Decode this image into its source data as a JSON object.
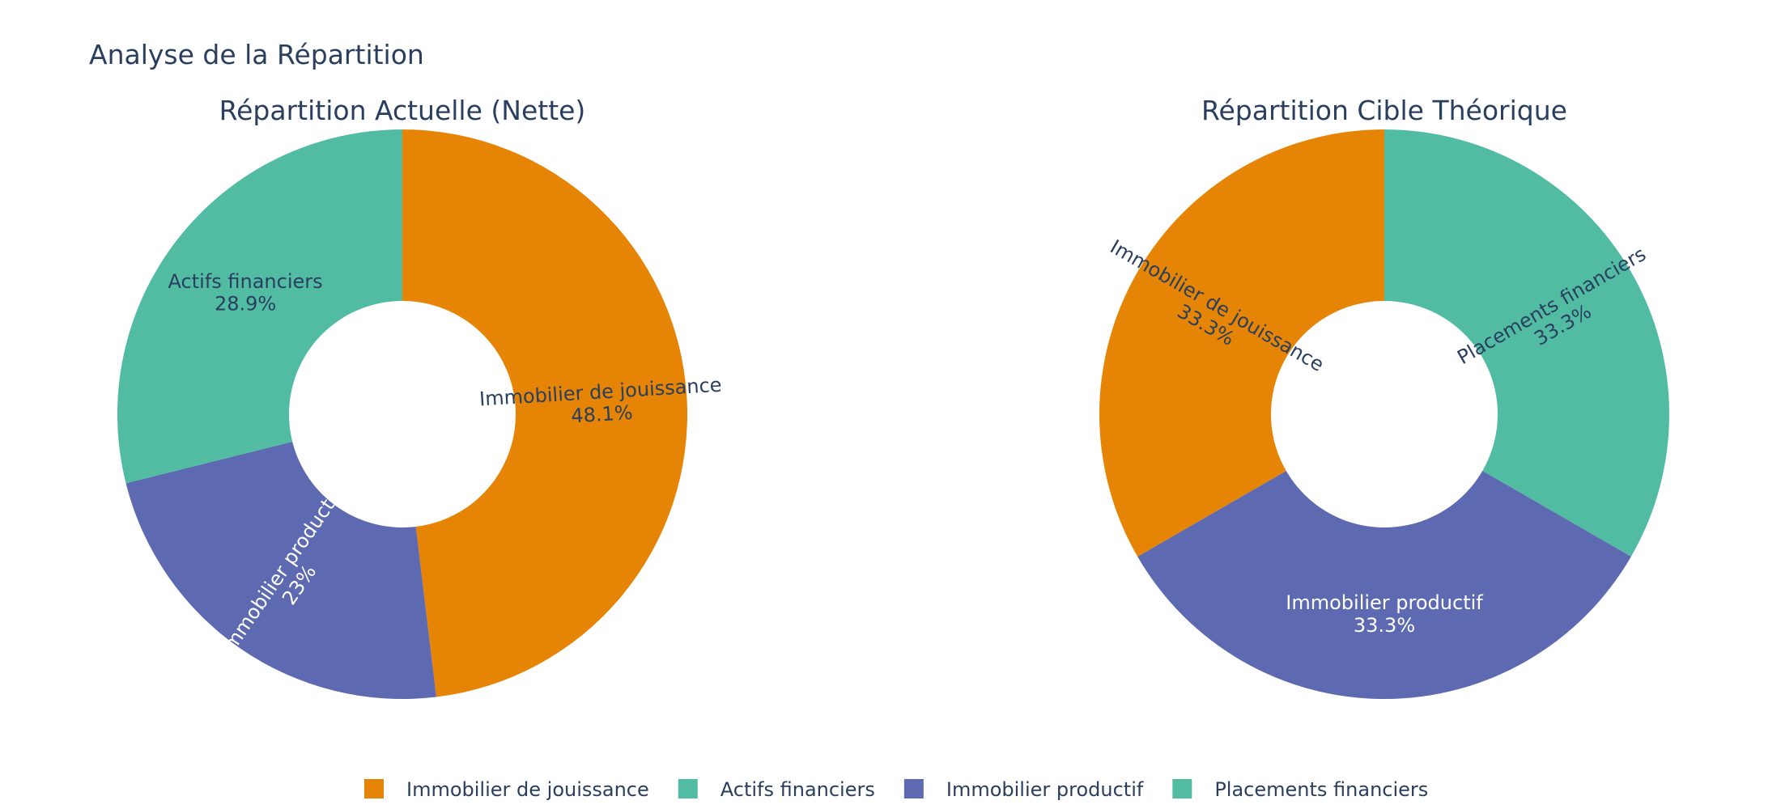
{
  "figure": {
    "title": "Analyse de la Répartition"
  },
  "chart_data": [
    {
      "type": "pie",
      "hole": true,
      "title": "Répartition Actuelle (Nette)",
      "slices": [
        {
          "label": "Immobilier de jouissance",
          "value": 48.1,
          "text": "48.1%",
          "color": "#E68405"
        },
        {
          "label": "Immobilier productif",
          "value": 23.0,
          "text": "23%",
          "color": "#5D69B1"
        },
        {
          "label": "Actifs financiers",
          "value": 28.9,
          "text": "28.9%",
          "color": "#52BCA3"
        }
      ]
    },
    {
      "type": "pie",
      "hole": true,
      "title": "Répartition Cible Théorique",
      "slices": [
        {
          "label": "Placements financiers",
          "value": 33.3,
          "text": "33.3%",
          "color": "#52BCA3"
        },
        {
          "label": "Immobilier productif",
          "value": 33.3,
          "text": "33.3%",
          "color": "#5D69B1"
        },
        {
          "label": "Immobilier de jouissance",
          "value": 33.3,
          "text": "33.3%",
          "color": "#E68405"
        }
      ]
    }
  ],
  "legend": {
    "placement": "bottom-center",
    "items": [
      {
        "label": "Immobilier de jouissance",
        "color": "#E68405"
      },
      {
        "label": "Actifs financiers",
        "color": "#52BCA3"
      },
      {
        "label": "Immobilier productif",
        "color": "#5D69B1"
      },
      {
        "label": "Placements financiers",
        "color": "#52BCA3"
      }
    ]
  }
}
